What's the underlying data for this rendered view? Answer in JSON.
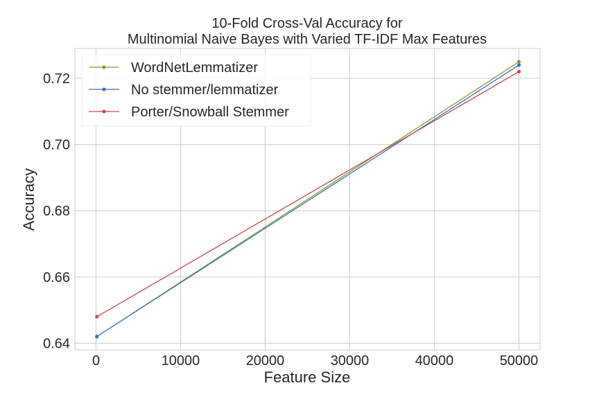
{
  "chart_data": {
    "type": "line",
    "title": "10-Fold Cross-Val Accuracy for\nMultinomial Naive Bayes with Varied TF-IDF Max Features",
    "xlabel": "Feature Size",
    "ylabel": "Accuracy",
    "xlim": [
      -2500,
      52500
    ],
    "ylim": [
      0.638,
      0.729
    ],
    "xticks": [
      0,
      10000,
      20000,
      30000,
      40000,
      50000
    ],
    "yticks": [
      0.64,
      0.66,
      0.68,
      0.7,
      0.72
    ],
    "ytick_labels": [
      "0.64",
      "0.66",
      "0.68",
      "0.70",
      "0.72"
    ],
    "grid": true,
    "legend_position": "top-left",
    "x": [
      100,
      50000
    ],
    "series": [
      {
        "name": "WordNetLemmatizer",
        "color": "#77a136",
        "values": [
          0.642,
          0.725
        ]
      },
      {
        "name": "No stemmer/lemmatizer",
        "color": "#3b6fbf",
        "values": [
          0.642,
          0.724
        ]
      },
      {
        "name": "Porter/Snowball Stemmer",
        "color": "#c8464c",
        "values": [
          0.648,
          0.722
        ]
      }
    ]
  }
}
